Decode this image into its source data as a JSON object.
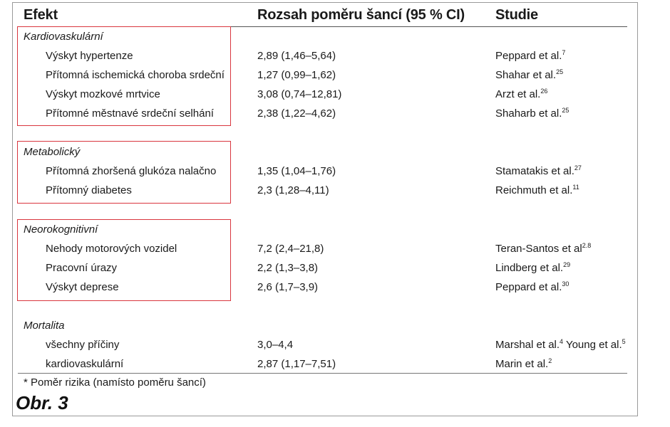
{
  "headers": {
    "effect": "Efekt",
    "ci": "Rozsah poměru šancí (95 % CI)",
    "study": "Studie"
  },
  "groups": [
    {
      "category": "Kardiovaskulární",
      "highlighted": true,
      "rows": [
        {
          "effect": "Výskyt hypertenze",
          "ci": "2,89 (1,46–5,64)",
          "study": "Peppard et al.",
          "ref": "7"
        },
        {
          "effect": "Přítomná ischemická choroba srdeční",
          "ci": "1,27 (0,99–1,62)",
          "study": "Shahar et al.",
          "ref": "25"
        },
        {
          "effect": "Výskyt mozkové mrtvice",
          "ci": "3,08 (0,74–12,81)",
          "study": "Arzt et al.",
          "ref": "26"
        },
        {
          "effect": "Přítomné městnavé srdeční selhání",
          "ci": "2,38 (1,22–4,62)",
          "study": "Shaharb et al.",
          "ref": "25"
        }
      ]
    },
    {
      "category": "Metabolický",
      "highlighted": true,
      "rows": [
        {
          "effect": "Přítomná zhoršená glukóza nalačno",
          "ci": "1,35 (1,04–1,76)",
          "study": "Stamatakis et al.",
          "ref": "27"
        },
        {
          "effect": "Přítomný diabetes",
          "ci": "2,3 (1,28–4,11)",
          "study": "Reichmuth et al.",
          "ref": "11"
        }
      ]
    },
    {
      "category": "Neorokognitivní",
      "highlighted": true,
      "rows": [
        {
          "effect": "Nehody motorových vozidel",
          "ci": "7,2 (2,4–21,8)",
          "study": "Teran-Santos et al",
          "ref": "2.8"
        },
        {
          "effect": "Pracovní úrazy",
          "ci": "2,2 (1,3–3,8)",
          "study": "Lindberg et al.",
          "ref": "29"
        },
        {
          "effect": "Výskyt deprese",
          "ci": "2,6 (1,7–3,9)",
          "study": "Peppard et al.",
          "ref": "30"
        }
      ]
    },
    {
      "category": "Mortalita",
      "highlighted": false,
      "rows": [
        {
          "effect": "všechny příčiny",
          "ci": "3,0–4,4",
          "study": "Marshal et al.",
          "ref": "4",
          "study2": " Young et al.",
          "ref2": "5"
        },
        {
          "effect": "kardiovaskulární",
          "ci": "2,87 (1,17–7,51)",
          "study": "Marin et al.",
          "ref": "2"
        }
      ]
    }
  ],
  "footnote": "* Poměr rizika (namísto poměru šancí)",
  "figure_label": "Obr. 3",
  "colors": {
    "highlight_border": "#d9363e",
    "text": "#1a1a1a"
  }
}
